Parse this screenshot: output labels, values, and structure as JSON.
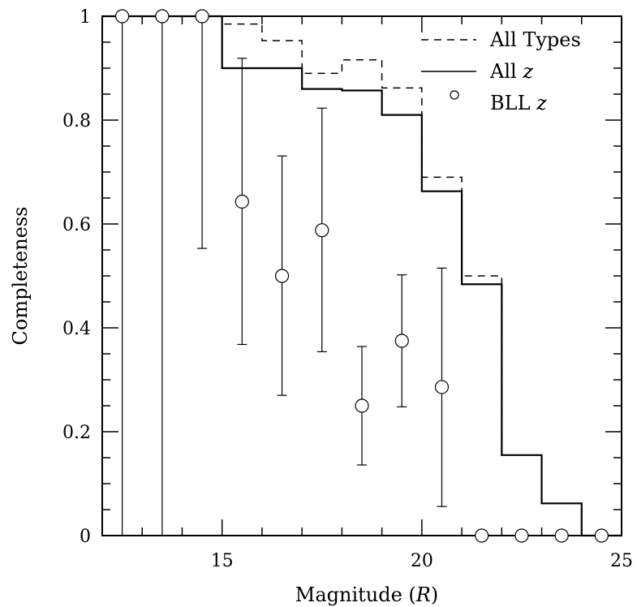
{
  "chart_data": {
    "type": "line",
    "xlabel": "Magnitude (R)",
    "ylabel": "Completeness",
    "xlim": [
      12,
      25
    ],
    "ylim": [
      0,
      1
    ],
    "x_ticks": [
      15,
      20,
      25
    ],
    "y_ticks": [
      0,
      0.2,
      0.4,
      0.6,
      0.8,
      1
    ],
    "y_tick_labels": [
      "0",
      "0.2",
      "0.4",
      "0.6",
      "0.8",
      "1"
    ],
    "grid": false,
    "legend_position": "top-right",
    "legend": {
      "all_types": "All Types",
      "all_z_prefix": "All ",
      "all_z_italic": "z",
      "bll_z_prefix": "BLL ",
      "bll_z_italic": "z"
    },
    "xlabel_parts": {
      "prefix": "Magnitude (",
      "italic": "R",
      "suffix": ")"
    },
    "series": [
      {
        "name": "All Types",
        "style": "dashed-step",
        "bin_edges": [
          12,
          13,
          14,
          15,
          16,
          17,
          18,
          19,
          20,
          21,
          22,
          23,
          24,
          25
        ],
        "values": [
          1.0,
          1.0,
          1.0,
          0.985,
          0.953,
          0.89,
          0.916,
          0.862,
          0.69,
          0.5,
          0.155,
          0.062,
          0.0
        ]
      },
      {
        "name": "All z",
        "style": "solid-step",
        "bin_edges": [
          12,
          13,
          14,
          15,
          16,
          17,
          18,
          19,
          20,
          21,
          22,
          23,
          24,
          25
        ],
        "values": [
          1.0,
          1.0,
          1.0,
          0.9,
          0.9,
          0.86,
          0.857,
          0.81,
          0.663,
          0.484,
          0.155,
          0.062,
          0.0
        ]
      },
      {
        "name": "BLL z",
        "style": "circles-with-errorbars",
        "points": [
          {
            "x": 12.5,
            "y": 1.0,
            "lo": 0.0,
            "hi": 1.0
          },
          {
            "x": 13.5,
            "y": 1.0,
            "lo": 0.0,
            "hi": 1.0
          },
          {
            "x": 14.5,
            "y": 1.0,
            "lo": 0.553,
            "hi": 1.0
          },
          {
            "x": 15.5,
            "y": 0.643,
            "lo": 0.368,
            "hi": 0.919
          },
          {
            "x": 16.5,
            "y": 0.5,
            "lo": 0.27,
            "hi": 0.731
          },
          {
            "x": 17.5,
            "y": 0.588,
            "lo": 0.354,
            "hi": 0.823
          },
          {
            "x": 18.5,
            "y": 0.25,
            "lo": 0.136,
            "hi": 0.364
          },
          {
            "x": 19.5,
            "y": 0.375,
            "lo": 0.248,
            "hi": 0.502
          },
          {
            "x": 20.5,
            "y": 0.286,
            "lo": 0.056,
            "hi": 0.515
          },
          {
            "x": 21.5,
            "y": 0.0,
            "lo": 0.0,
            "hi": 0.0
          },
          {
            "x": 22.5,
            "y": 0.0,
            "lo": 0.0,
            "hi": 0.0
          },
          {
            "x": 23.5,
            "y": 0.0,
            "lo": 0.0,
            "hi": 0.0
          },
          {
            "x": 24.5,
            "y": 0.0,
            "lo": 0.0,
            "hi": 0.0
          }
        ]
      }
    ]
  }
}
